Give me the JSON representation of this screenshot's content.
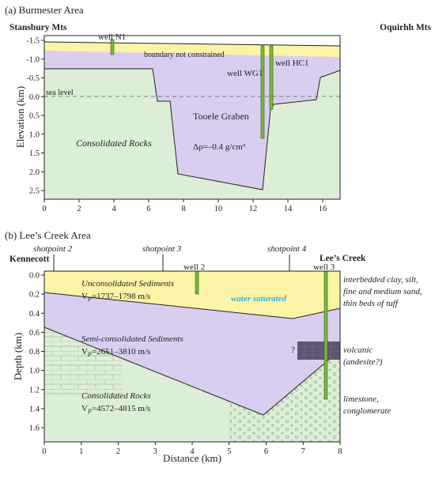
{
  "panel_a": {
    "title": "(a) Burmester Area",
    "left_label": "Stansbury Mts",
    "right_label": "Oquirhh Mts",
    "ylabel": "Elevation (km)",
    "xticks": [
      "0",
      "2",
      "4",
      "6",
      "8",
      "10",
      "12",
      "14",
      "16"
    ],
    "yticks": [
      "-1.5",
      "-1.0",
      "-0.5",
      "0.0",
      "0.5",
      "1.0",
      "1.5",
      "2.0",
      "2.5"
    ],
    "well_n1": "well N1",
    "well_wg1": "well WG1",
    "well_hc1": "well HC1",
    "boundary": "boundary not constrained",
    "sea_level": "sea level",
    "graben": "Tooele Graben",
    "density": "Δρ=–0.4 g/cm³",
    "consolidated": "Consolidated Rocks"
  },
  "panel_b": {
    "title": "(b) Lee’s Creek Area",
    "left_label": "Kennecott",
    "right_label": "Lee’s Creek",
    "ylabel": "Depth (km)",
    "xlabel": "Distance (km)",
    "xticks": [
      "0",
      "1",
      "2",
      "3",
      "4",
      "5",
      "6",
      "7",
      "8"
    ],
    "yticks": [
      "0.0",
      "0.2",
      "0.4",
      "0.6",
      "0.8",
      "1.0",
      "1.2",
      "1.4",
      "1.6"
    ],
    "shotpoint2": "shotpoint 2",
    "shotpoint3": "shotpoint 3",
    "shotpoint4": "shotpoint 4",
    "well2": "well 2",
    "well3": "well 3",
    "unconsolidated": "Unconsolidated Sediments",
    "vp1": "1737–1798 m/s",
    "water": "water saturated",
    "semi": "Semi-consolidated Sediments",
    "vp2": "2651–3810 m/s",
    "consolidated": "Consolidated Rocks",
    "vp3": "4572–4815 m/s",
    "vp_symbol": "V",
    "vp_sub": "P",
    "vp_eq": "=",
    "question": "?",
    "side_notes": {
      "clay1": "interbedded clay, silt,",
      "clay2": "fine and medium sand,",
      "clay3": "thin beds of tuff",
      "volcanic1": "volcanic",
      "volcanic2": "(andesite?)",
      "limestone1": "limestone,",
      "limestone2": "conglomerate"
    }
  },
  "colors": {
    "unconsolidated": "#fbf3a6",
    "semi_consolidated": "#d9cef0",
    "consolidated": "#dcefd6",
    "well": "#7cb83a",
    "volcanic": "#5c5470",
    "water_text": "#3aaed8"
  }
}
